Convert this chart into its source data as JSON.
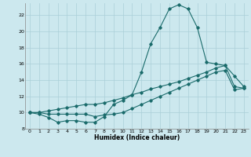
{
  "title": "",
  "xlabel": "Humidex (Indice chaleur)",
  "ylabel": "",
  "xlim": [
    -0.5,
    23.5
  ],
  "ylim": [
    8,
    23.5
  ],
  "yticks": [
    8,
    10,
    12,
    14,
    16,
    18,
    20,
    22
  ],
  "xticks": [
    0,
    1,
    2,
    3,
    4,
    5,
    6,
    7,
    8,
    9,
    10,
    11,
    12,
    13,
    14,
    15,
    16,
    17,
    18,
    19,
    20,
    21,
    22,
    23
  ],
  "background_color": "#cce8ee",
  "grid_color": "#aacfd8",
  "line_color": "#1a6b6b",
  "lines": [
    {
      "x": [
        0,
        1,
        2,
        3,
        4,
        5,
        6,
        7,
        8,
        9,
        10,
        11,
        12,
        13,
        14,
        15,
        16,
        17,
        18,
        19,
        20,
        21,
        22,
        23
      ],
      "y": [
        10.0,
        9.8,
        9.4,
        8.8,
        9.0,
        9.0,
        8.8,
        8.8,
        9.5,
        11.0,
        11.5,
        12.2,
        15.0,
        18.5,
        20.5,
        22.8,
        23.3,
        22.8,
        20.5,
        16.2,
        16.0,
        15.8,
        14.5,
        13.2
      ]
    },
    {
      "x": [
        0,
        1,
        2,
        3,
        4,
        5,
        6,
        7,
        8,
        9,
        10,
        11,
        12,
        13,
        14,
        15,
        16,
        17,
        18,
        19,
        20,
        21,
        22,
        23
      ],
      "y": [
        10.0,
        10.0,
        10.2,
        10.4,
        10.6,
        10.8,
        11.0,
        11.0,
        11.2,
        11.5,
        11.8,
        12.2,
        12.5,
        12.9,
        13.2,
        13.5,
        13.8,
        14.2,
        14.6,
        15.0,
        15.5,
        15.8,
        13.2,
        13.0
      ]
    },
    {
      "x": [
        0,
        1,
        2,
        3,
        4,
        5,
        6,
        7,
        8,
        9,
        10,
        11,
        12,
        13,
        14,
        15,
        16,
        17,
        18,
        19,
        20,
        21,
        22,
        23
      ],
      "y": [
        10.0,
        10.0,
        9.8,
        9.8,
        9.8,
        9.8,
        9.8,
        9.5,
        9.7,
        9.8,
        10.0,
        10.5,
        11.0,
        11.5,
        12.0,
        12.5,
        13.0,
        13.5,
        14.0,
        14.5,
        15.0,
        15.2,
        12.8,
        13.0
      ]
    }
  ]
}
